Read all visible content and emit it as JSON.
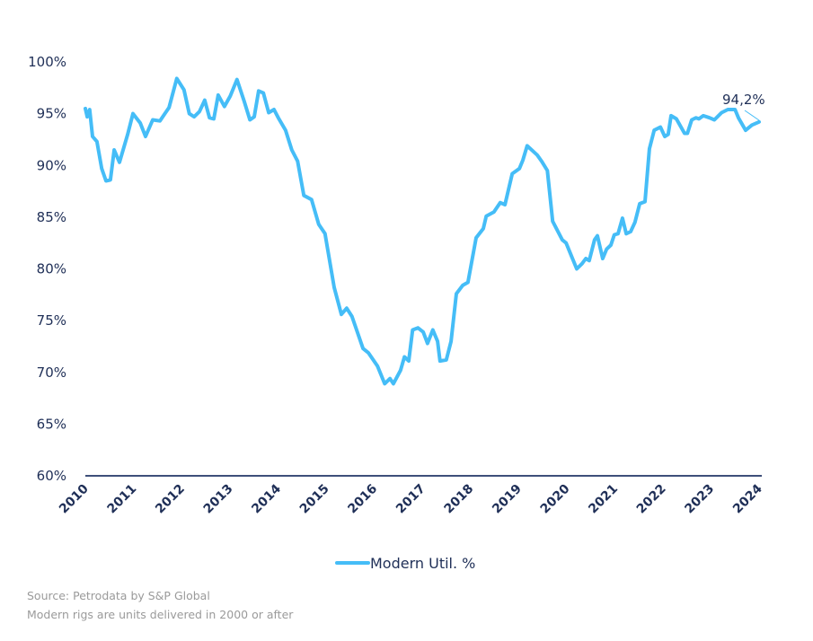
{
  "chart_data": {
    "type": "line",
    "title": "",
    "xlabel": "",
    "ylabel": "",
    "ylim": [
      60,
      100
    ],
    "xlim": [
      2010,
      2024
    ],
    "yticks": [
      "60%",
      "65%",
      "70%",
      "75%",
      "80%",
      "85%",
      "90%",
      "95%",
      "100%"
    ],
    "ytick_values": [
      60,
      65,
      70,
      75,
      80,
      85,
      90,
      95,
      100
    ],
    "xticks": [
      "2010",
      "2011",
      "2012",
      "2013",
      "2014",
      "2015",
      "2016",
      "2017",
      "2018",
      "2019",
      "2020",
      "2021",
      "2022",
      "2023",
      "2024"
    ],
    "grid": false,
    "legend_position": "bottom-center",
    "series": [
      {
        "name": "Modern Util. %",
        "color": "#45bdf7",
        "x": [
          0,
          0.04,
          0.09,
          0.15,
          0.24,
          0.34,
          0.43,
          0.52,
          0.6,
          0.71,
          0.88,
          0.99,
          1.14,
          1.25,
          1.4,
          1.55,
          1.74,
          1.9,
          2.05,
          2.16,
          2.26,
          2.37,
          2.48,
          2.58,
          2.67,
          2.76,
          2.89,
          3.01,
          3.15,
          3.3,
          3.42,
          3.51,
          3.6,
          3.7,
          3.81,
          3.92,
          4.01,
          4.16,
          4.29,
          4.41,
          4.54,
          4.7,
          4.85,
          4.98,
          5.17,
          5.32,
          5.43,
          5.54,
          5.77,
          5.88,
          6.07,
          6.22,
          6.33,
          6.4,
          6.55,
          6.63,
          6.72,
          6.8,
          6.91,
          7.02,
          7.11,
          7.22,
          7.32,
          7.37,
          7.5,
          7.6,
          7.71,
          7.84,
          7.95,
          8.12,
          8.27,
          8.33,
          8.49,
          8.62,
          8.72,
          8.87,
          9.02,
          9.09,
          9.18,
          9.39,
          9.48,
          9.6,
          9.71,
          9.91,
          9.99,
          10.14,
          10.21,
          10.32,
          10.4,
          10.47,
          10.58,
          10.64,
          10.75,
          10.83,
          10.92,
          10.99,
          11.07,
          11.16,
          11.24,
          11.33,
          11.42,
          11.52,
          11.63,
          11.72,
          11.82,
          11.95,
          12.04,
          12.11,
          12.17,
          12.28,
          12.45,
          12.51,
          12.6,
          12.69,
          12.75,
          12.84,
          12.97,
          13.07,
          13.22,
          13.35,
          13.5,
          13.57,
          13.72,
          13.85,
          14.0
        ],
        "x_note": "years since 2010",
        "values": [
          95.5,
          94.7,
          95.4,
          92.8,
          92.3,
          89.7,
          88.5,
          88.6,
          91.5,
          90.3,
          93.0,
          95.0,
          94.1,
          92.8,
          94.4,
          94.3,
          95.6,
          98.4,
          97.3,
          95.0,
          94.7,
          95.2,
          96.3,
          94.6,
          94.5,
          96.8,
          95.7,
          96.7,
          98.3,
          96.2,
          94.4,
          94.7,
          97.2,
          97.0,
          95.1,
          95.4,
          94.6,
          93.4,
          91.5,
          90.4,
          87.1,
          86.7,
          84.3,
          83.4,
          78.2,
          75.6,
          76.2,
          75.4,
          72.3,
          71.9,
          70.6,
          68.9,
          69.4,
          68.9,
          70.2,
          71.5,
          71.1,
          74.1,
          74.3,
          73.9,
          72.8,
          74.1,
          73.0,
          71.1,
          71.2,
          73.0,
          77.6,
          78.4,
          78.7,
          83.0,
          83.9,
          85.1,
          85.5,
          86.4,
          86.2,
          89.2,
          89.7,
          90.5,
          91.9,
          91.0,
          90.4,
          89.5,
          84.6,
          82.8,
          82.5,
          80.8,
          80.0,
          80.5,
          81.0,
          80.8,
          82.8,
          83.2,
          81.0,
          81.9,
          82.3,
          83.3,
          83.4,
          84.9,
          83.4,
          83.6,
          84.5,
          86.3,
          86.5,
          91.6,
          93.4,
          93.7,
          92.8,
          93.0,
          94.8,
          94.5,
          93.1,
          93.1,
          94.4,
          94.6,
          94.5,
          94.8,
          94.6,
          94.4,
          95.1,
          95.4,
          95.4,
          94.6,
          93.4,
          93.9,
          94.2
        ]
      }
    ],
    "annotation": "94,2%",
    "axis_color": "#3e4f7a"
  },
  "notes": {
    "source": "Source: Petrodata by S&P Global",
    "definition": "Modern rigs are units delivered in 2000 or after"
  }
}
